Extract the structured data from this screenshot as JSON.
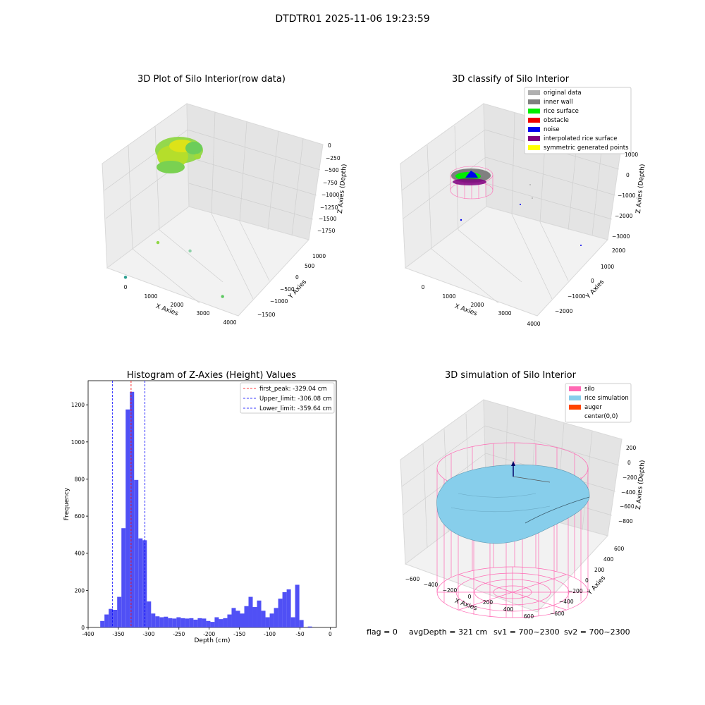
{
  "figure": {
    "suptitle": "DTDTR01 2025-11-06 19:23:59",
    "footer": {
      "flag": "flag = 0",
      "avg_depth": "avgDepth = 321 cm",
      "sv1": "sv1 = 700~2300",
      "sv2": "sv2 = 700~2300"
    }
  },
  "chart_data": [
    {
      "type": "scatter",
      "projection": "3d",
      "title": "3D Plot of Silo Interior(row data)",
      "xlabel": "X Axies",
      "ylabel": "Y Axies",
      "zlabel": "Z Axies (Depth)",
      "xticks": [
        "0",
        "1000",
        "2000",
        "3000",
        "4000"
      ],
      "yticks": [
        "1000",
        "500",
        "0",
        "−500",
        "−1000",
        "−1500"
      ],
      "zticks": [
        "0",
        "−250",
        "−500",
        "−750",
        "−1000",
        "−1250",
        "−1500",
        "−1750"
      ],
      "grid": true,
      "colormap": "viridis",
      "points": [
        {
          "x": 300,
          "y": 300,
          "z": -300,
          "color": "#8fd744"
        },
        {
          "x": 0,
          "y": 800,
          "z": -1650,
          "color": "#2a9d8f"
        },
        {
          "x": 2300,
          "y": 700,
          "z": -550,
          "color": "#8fd1a9"
        },
        {
          "x": 2600,
          "y": 200,
          "z": -900,
          "color": "#5ec962"
        },
        {
          "x": 3600,
          "y": -1100,
          "z": -1700,
          "color": "#440154"
        }
      ]
    },
    {
      "type": "scatter",
      "projection": "3d",
      "title": "3D classify of Silo Interior",
      "xlabel": "X Axies",
      "ylabel": "Y Axies",
      "zlabel": "Z Axies (Depth)",
      "xticks": [
        "0",
        "1000",
        "2000",
        "3000",
        "4000"
      ],
      "yticks": [
        "2000",
        "1000",
        "0",
        "−1000",
        "−2000"
      ],
      "zticks": [
        "1000",
        "0",
        "−1000",
        "−2000",
        "−3000"
      ],
      "grid": true,
      "legend_position": "top-right",
      "legend": [
        {
          "label": "original data",
          "color": "#b0b0b0"
        },
        {
          "label": "inner wall",
          "color": "#808080"
        },
        {
          "label": "rice surface",
          "color": "#00ee00"
        },
        {
          "label": "obstacle",
          "color": "#ee0000"
        },
        {
          "label": "noise",
          "color": "#0000ee"
        },
        {
          "label": "interpolated rice surface",
          "color": "#800080"
        },
        {
          "label": "symmetric generated points",
          "color": "#ffff00"
        }
      ]
    },
    {
      "type": "bar",
      "title": "Histogram of Z-Axies (Height) Values",
      "xlabel": "Depth (cm)",
      "ylabel": "Frequency",
      "xlim": [
        -400,
        10
      ],
      "ylim": [
        0,
        1330
      ],
      "xticks": [
        -400,
        -350,
        -300,
        -250,
        -200,
        -150,
        -100,
        -50,
        0
      ],
      "yticks": [
        0,
        200,
        400,
        600,
        800,
        1000,
        1200
      ],
      "bar_color": "#5050f5",
      "bin_width": 7,
      "bins": [
        {
          "x0": -380,
          "count": 35
        },
        {
          "x0": -373,
          "count": 70
        },
        {
          "x0": -366,
          "count": 100
        },
        {
          "x0": -359,
          "count": 95
        },
        {
          "x0": -352,
          "count": 165
        },
        {
          "x0": -345,
          "count": 535
        },
        {
          "x0": -338,
          "count": 1175
        },
        {
          "x0": -331,
          "count": 1270
        },
        {
          "x0": -324,
          "count": 795
        },
        {
          "x0": -317,
          "count": 480
        },
        {
          "x0": -310,
          "count": 470
        },
        {
          "x0": -303,
          "count": 140
        },
        {
          "x0": -296,
          "count": 75
        },
        {
          "x0": -289,
          "count": 60
        },
        {
          "x0": -282,
          "count": 55
        },
        {
          "x0": -275,
          "count": 58
        },
        {
          "x0": -268,
          "count": 50
        },
        {
          "x0": -261,
          "count": 48
        },
        {
          "x0": -254,
          "count": 55
        },
        {
          "x0": -247,
          "count": 50
        },
        {
          "x0": -240,
          "count": 48
        },
        {
          "x0": -233,
          "count": 50
        },
        {
          "x0": -226,
          "count": 42
        },
        {
          "x0": -219,
          "count": 50
        },
        {
          "x0": -212,
          "count": 48
        },
        {
          "x0": -205,
          "count": 35
        },
        {
          "x0": -198,
          "count": 30
        },
        {
          "x0": -191,
          "count": 55
        },
        {
          "x0": -184,
          "count": 45
        },
        {
          "x0": -177,
          "count": 50
        },
        {
          "x0": -170,
          "count": 70
        },
        {
          "x0": -163,
          "count": 105
        },
        {
          "x0": -156,
          "count": 90
        },
        {
          "x0": -149,
          "count": 75
        },
        {
          "x0": -142,
          "count": 115
        },
        {
          "x0": -135,
          "count": 165
        },
        {
          "x0": -128,
          "count": 110
        },
        {
          "x0": -121,
          "count": 145
        },
        {
          "x0": -114,
          "count": 90
        },
        {
          "x0": -107,
          "count": 55
        },
        {
          "x0": -100,
          "count": 75
        },
        {
          "x0": -93,
          "count": 105
        },
        {
          "x0": -86,
          "count": 155
        },
        {
          "x0": -79,
          "count": 190
        },
        {
          "x0": -72,
          "count": 205
        },
        {
          "x0": -65,
          "count": 55
        },
        {
          "x0": -58,
          "count": 230
        },
        {
          "x0": -51,
          "count": 40
        },
        {
          "x0": -44,
          "count": 0
        },
        {
          "x0": -37,
          "count": 5
        }
      ],
      "vlines": [
        {
          "x": -329.04,
          "color": "#ff0000",
          "label": "first_peak: -329.04 cm"
        },
        {
          "x": -306.08,
          "color": "#0000ff",
          "label": "Upper_limit: -306.08 cm"
        },
        {
          "x": -359.64,
          "color": "#0000ff",
          "label": "Lower_limit: -359.64 cm"
        }
      ],
      "legend_position": "top-right",
      "grid": false
    },
    {
      "type": "surface",
      "projection": "3d",
      "title": "3D simulation of Silo Interior",
      "xlabel": "X Axies",
      "ylabel": "Y Axies",
      "zlabel": "Z Axies (Depth)",
      "xticks": [
        "−600",
        "−400",
        "−200",
        "0",
        "200",
        "400",
        "600"
      ],
      "yticks": [
        "600",
        "400",
        "200",
        "0",
        "−200",
        "−400",
        "−600"
      ],
      "zticks": [
        "200",
        "0",
        "−200",
        "−400",
        "−600",
        "−800"
      ],
      "grid": true,
      "legend_position": "top-right",
      "legend": [
        {
          "label": "silo",
          "color": "#ff69b4"
        },
        {
          "label": "rice simulation",
          "color": "#87ceeb"
        },
        {
          "label": "auger",
          "color": "#ff4500"
        },
        {
          "label": "center(0,0)",
          "color": "#ffffff"
        }
      ]
    }
  ]
}
